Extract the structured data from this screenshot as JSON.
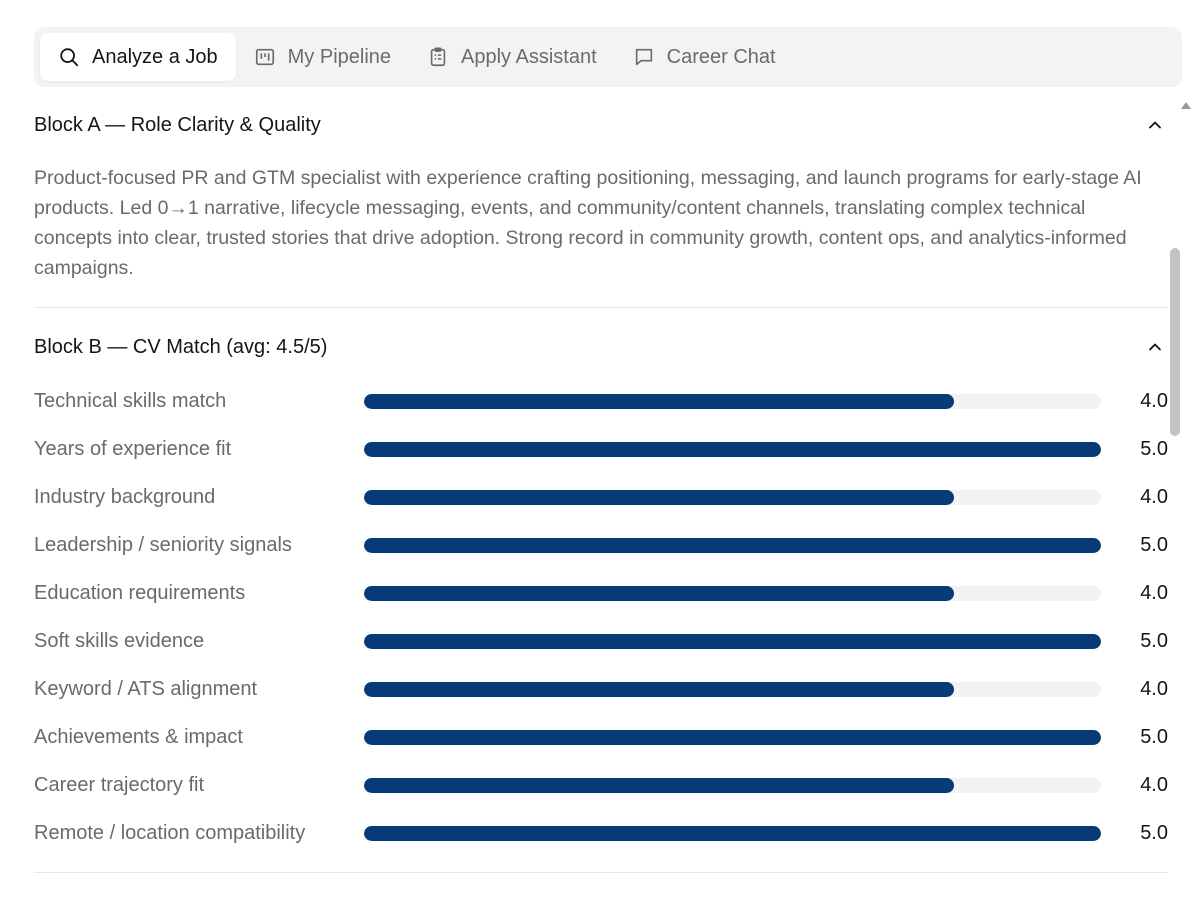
{
  "tabs": [
    {
      "label": "Analyze a Job",
      "icon": "search-icon"
    },
    {
      "label": "My Pipeline",
      "icon": "pipeline-icon"
    },
    {
      "label": "Apply Assistant",
      "icon": "clipboard-icon"
    },
    {
      "label": "Career Chat",
      "icon": "chat-icon"
    }
  ],
  "active_tab": "Analyze a Job",
  "block_a": {
    "title": "Block A — Role Clarity & Quality",
    "text": "Product-focused PR and GTM specialist with experience crafting positioning, messaging, and launch programs for early-stage AI products. Led 0→1 narrative, lifecycle messaging, events, and community/content channels, translating complex technical concepts into clear, trusted stories that drive adoption. Strong record in community growth, content ops, and analytics-informed campaigns."
  },
  "block_b": {
    "title": "Block B — CV Match (avg: 4.5/5)",
    "max_score": 5,
    "rows": [
      {
        "label": "Technical skills match",
        "value": "4.0",
        "score": 4.0
      },
      {
        "label": "Years of experience fit",
        "value": "5.0",
        "score": 5.0
      },
      {
        "label": "Industry background",
        "value": "4.0",
        "score": 4.0
      },
      {
        "label": "Leadership / seniority signals",
        "value": "5.0",
        "score": 5.0
      },
      {
        "label": "Education requirements",
        "value": "4.0",
        "score": 4.0
      },
      {
        "label": "Soft skills evidence",
        "value": "5.0",
        "score": 5.0
      },
      {
        "label": "Keyword / ATS alignment",
        "value": "4.0",
        "score": 4.0
      },
      {
        "label": "Achievements & impact",
        "value": "5.0",
        "score": 5.0
      },
      {
        "label": "Career trajectory fit",
        "value": "4.0",
        "score": 4.0
      },
      {
        "label": "Remote / location compatibility",
        "value": "5.0",
        "score": 5.0
      }
    ]
  },
  "colors": {
    "bar_fill": "#073b78",
    "bar_track": "#f2f2f2",
    "tabbar_bg": "#f3f3f3"
  }
}
